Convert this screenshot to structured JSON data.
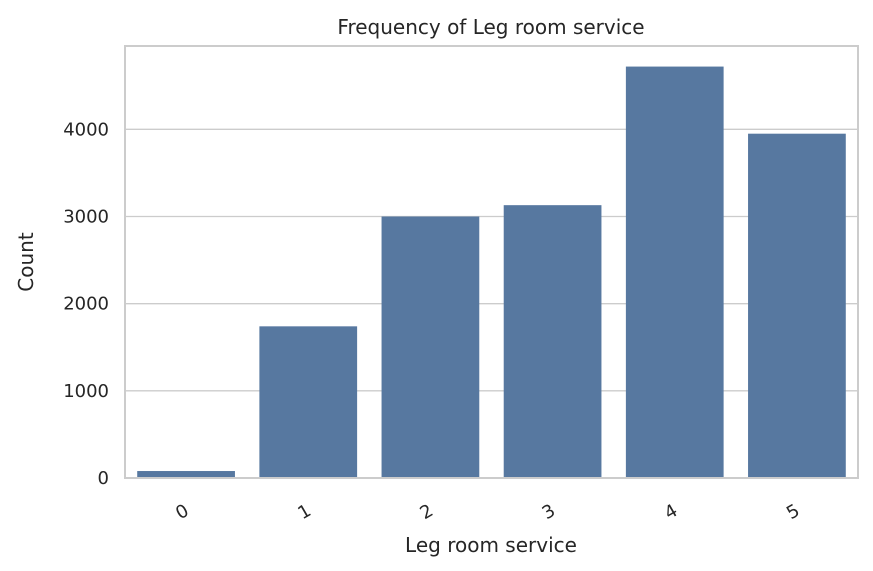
{
  "chart_data": {
    "type": "bar",
    "title": "Frequency of Leg room service",
    "xlabel": "Leg room service",
    "ylabel": "Count",
    "categories": [
      "0",
      "1",
      "2",
      "3",
      "4",
      "5"
    ],
    "values": [
      80,
      1740,
      3000,
      3130,
      4720,
      3950
    ],
    "yticks": [
      0,
      1000,
      2000,
      3000,
      4000
    ],
    "ylim": [
      0,
      4956
    ],
    "grid": true,
    "bar_color": "#5778a0"
  }
}
